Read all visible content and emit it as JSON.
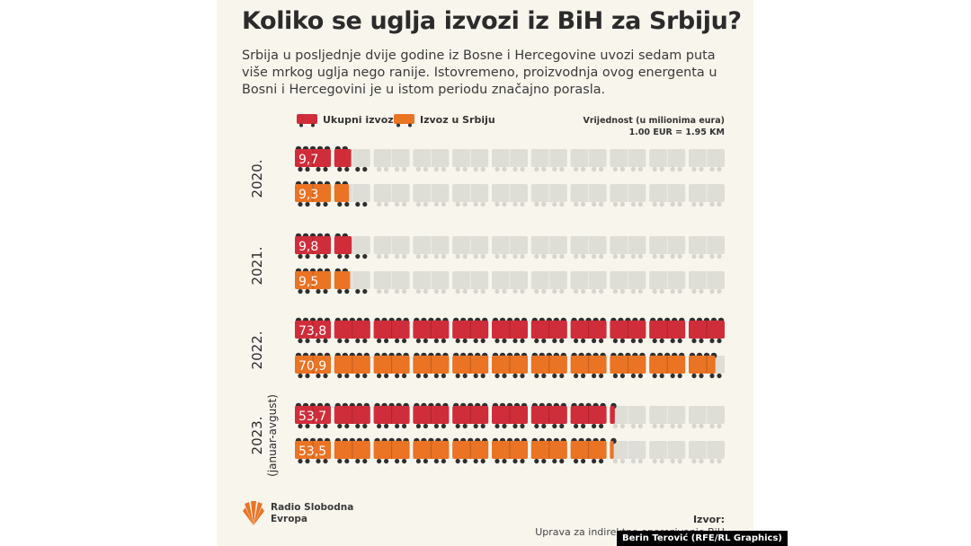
{
  "header": {
    "title": "Koliko se uglja izvozi iz BiH za Srbiju?",
    "subtitle": "Srbija u posljednje dvije godine iz Bosne i Hercegovine uvozi sedam puta više mrkog uglja nego ranije. Istovremeno, proizvodnja ovog energenta u Bosni i Hercegovini je u istom periodu značajno porasla."
  },
  "legend": {
    "total": "Ukupni izvoz",
    "serbia": "Izvoz u Srbiju"
  },
  "unit": {
    "line1": "Vrijednost (u milionima eura)",
    "line2": "1.00 EUR = 1.95 KM"
  },
  "footer": {
    "logo_line1": "Radio Slobodna",
    "logo_line2": "Evropa",
    "source_label": "Izvor:",
    "source_text": "Uprava za indirektno oporezivanje BiH",
    "credit": "Berin Terović (RFE/RL Graphics)"
  },
  "colors": {
    "total": "#d02d3a",
    "serbia": "#ea7324",
    "empty": "#deddd6",
    "background": "#f8f5ed"
  },
  "icons": {
    "unit_icon": "coal-wagon-icon",
    "logo": "rse-fan-logo"
  },
  "chart_data": {
    "type": "bar",
    "title": "Koliko se uglja izvozi iz BiH za Srbiju?",
    "categories": [
      "2020.",
      "2021.",
      "2022.",
      "2023."
    ],
    "category_notes": [
      "",
      "",
      "",
      "(januar-avgust)"
    ],
    "series": [
      {
        "name": "Ukupni izvoz",
        "values": [
          9.7,
          9.8,
          73.8,
          53.7
        ],
        "labels": [
          "9,7",
          "9,8",
          "73,8",
          "53,7"
        ]
      },
      {
        "name": "Izvoz u Srbiju",
        "values": [
          9.3,
          9.5,
          70.9,
          53.5
        ],
        "labels": [
          "9,3",
          "9,5",
          "70,9",
          "53,5"
        ]
      }
    ],
    "unit_per_icon": 6.6,
    "icons_per_row": 11,
    "ylabel": "Vrijednost (u milionima eura)"
  }
}
